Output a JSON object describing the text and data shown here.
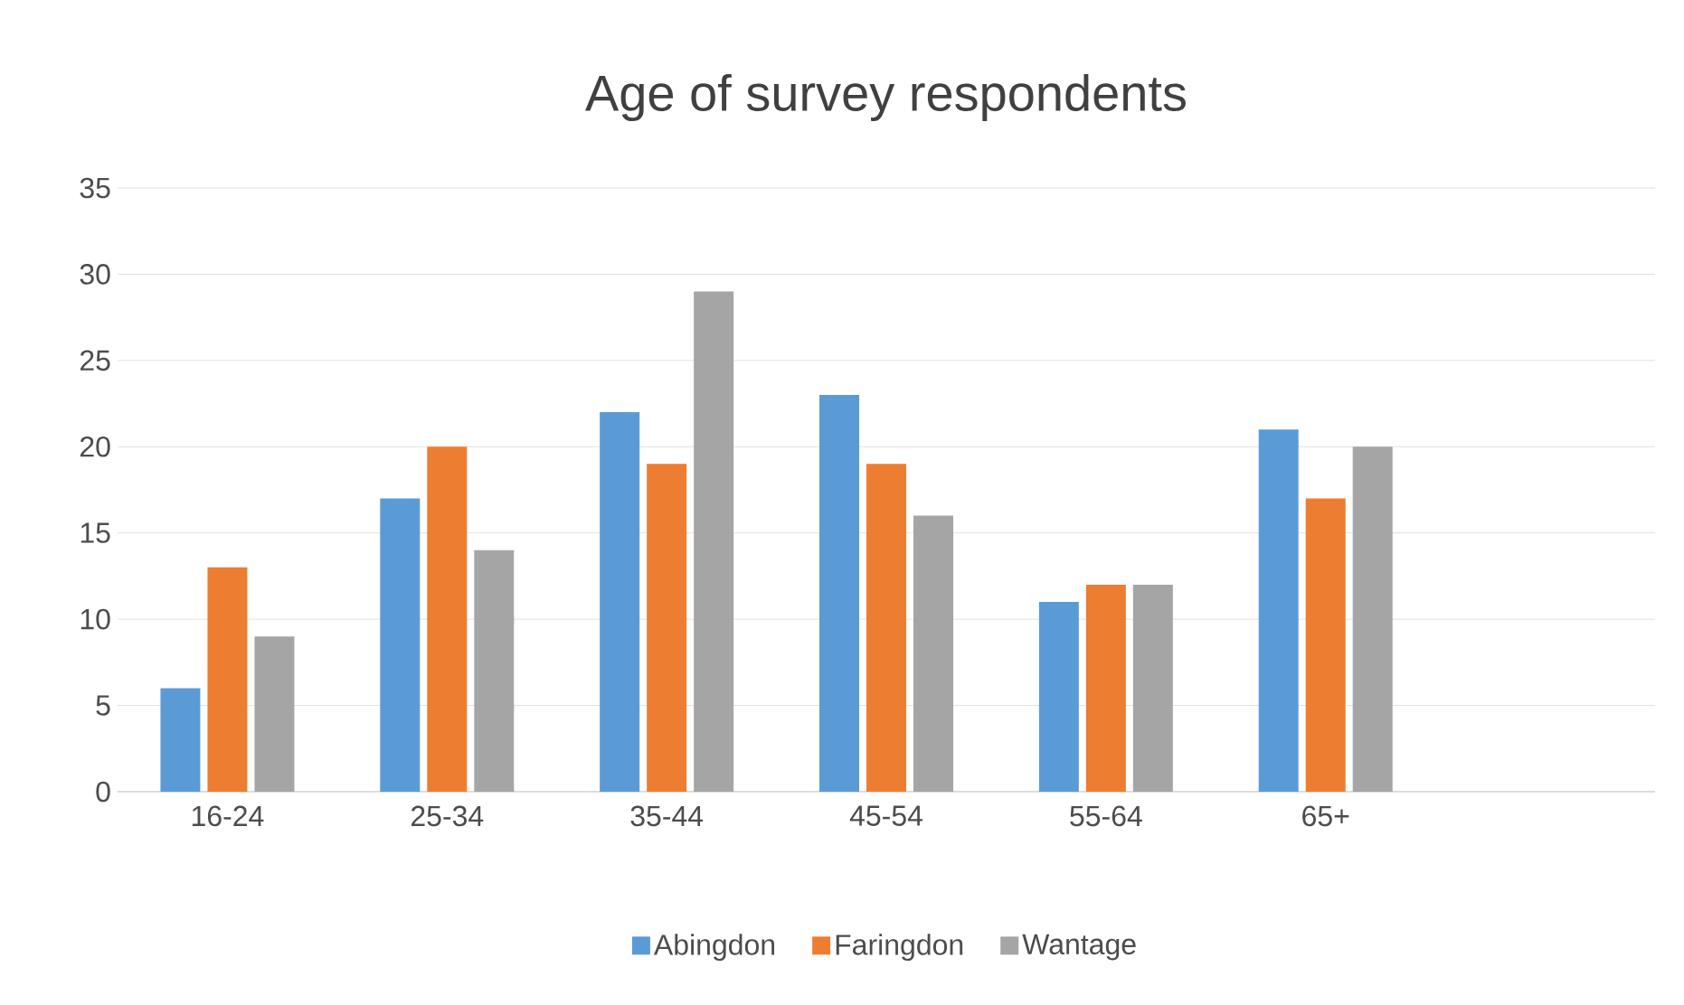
{
  "chart_data": {
    "type": "bar",
    "title": "Age of survey respondents",
    "categories": [
      "16-24",
      "25-34",
      "35-44",
      "45-54",
      "55-64",
      "65+",
      null
    ],
    "series": [
      {
        "name": "Abingdon",
        "color": "#5b9bd5",
        "values": [
          6,
          17,
          22,
          23,
          11,
          21,
          null
        ]
      },
      {
        "name": "Faringdon",
        "color": "#ed7d31",
        "values": [
          13,
          20,
          19,
          19,
          12,
          17,
          null
        ]
      },
      {
        "name": "Wantage",
        "color": "#a5a5a5",
        "values": [
          9,
          14,
          29,
          16,
          12,
          20,
          null
        ]
      }
    ],
    "ylim": [
      0,
      35
    ],
    "yticks": [
      0,
      5,
      10,
      15,
      20,
      25,
      30,
      35
    ],
    "grid": "y",
    "legend": "bottom"
  }
}
